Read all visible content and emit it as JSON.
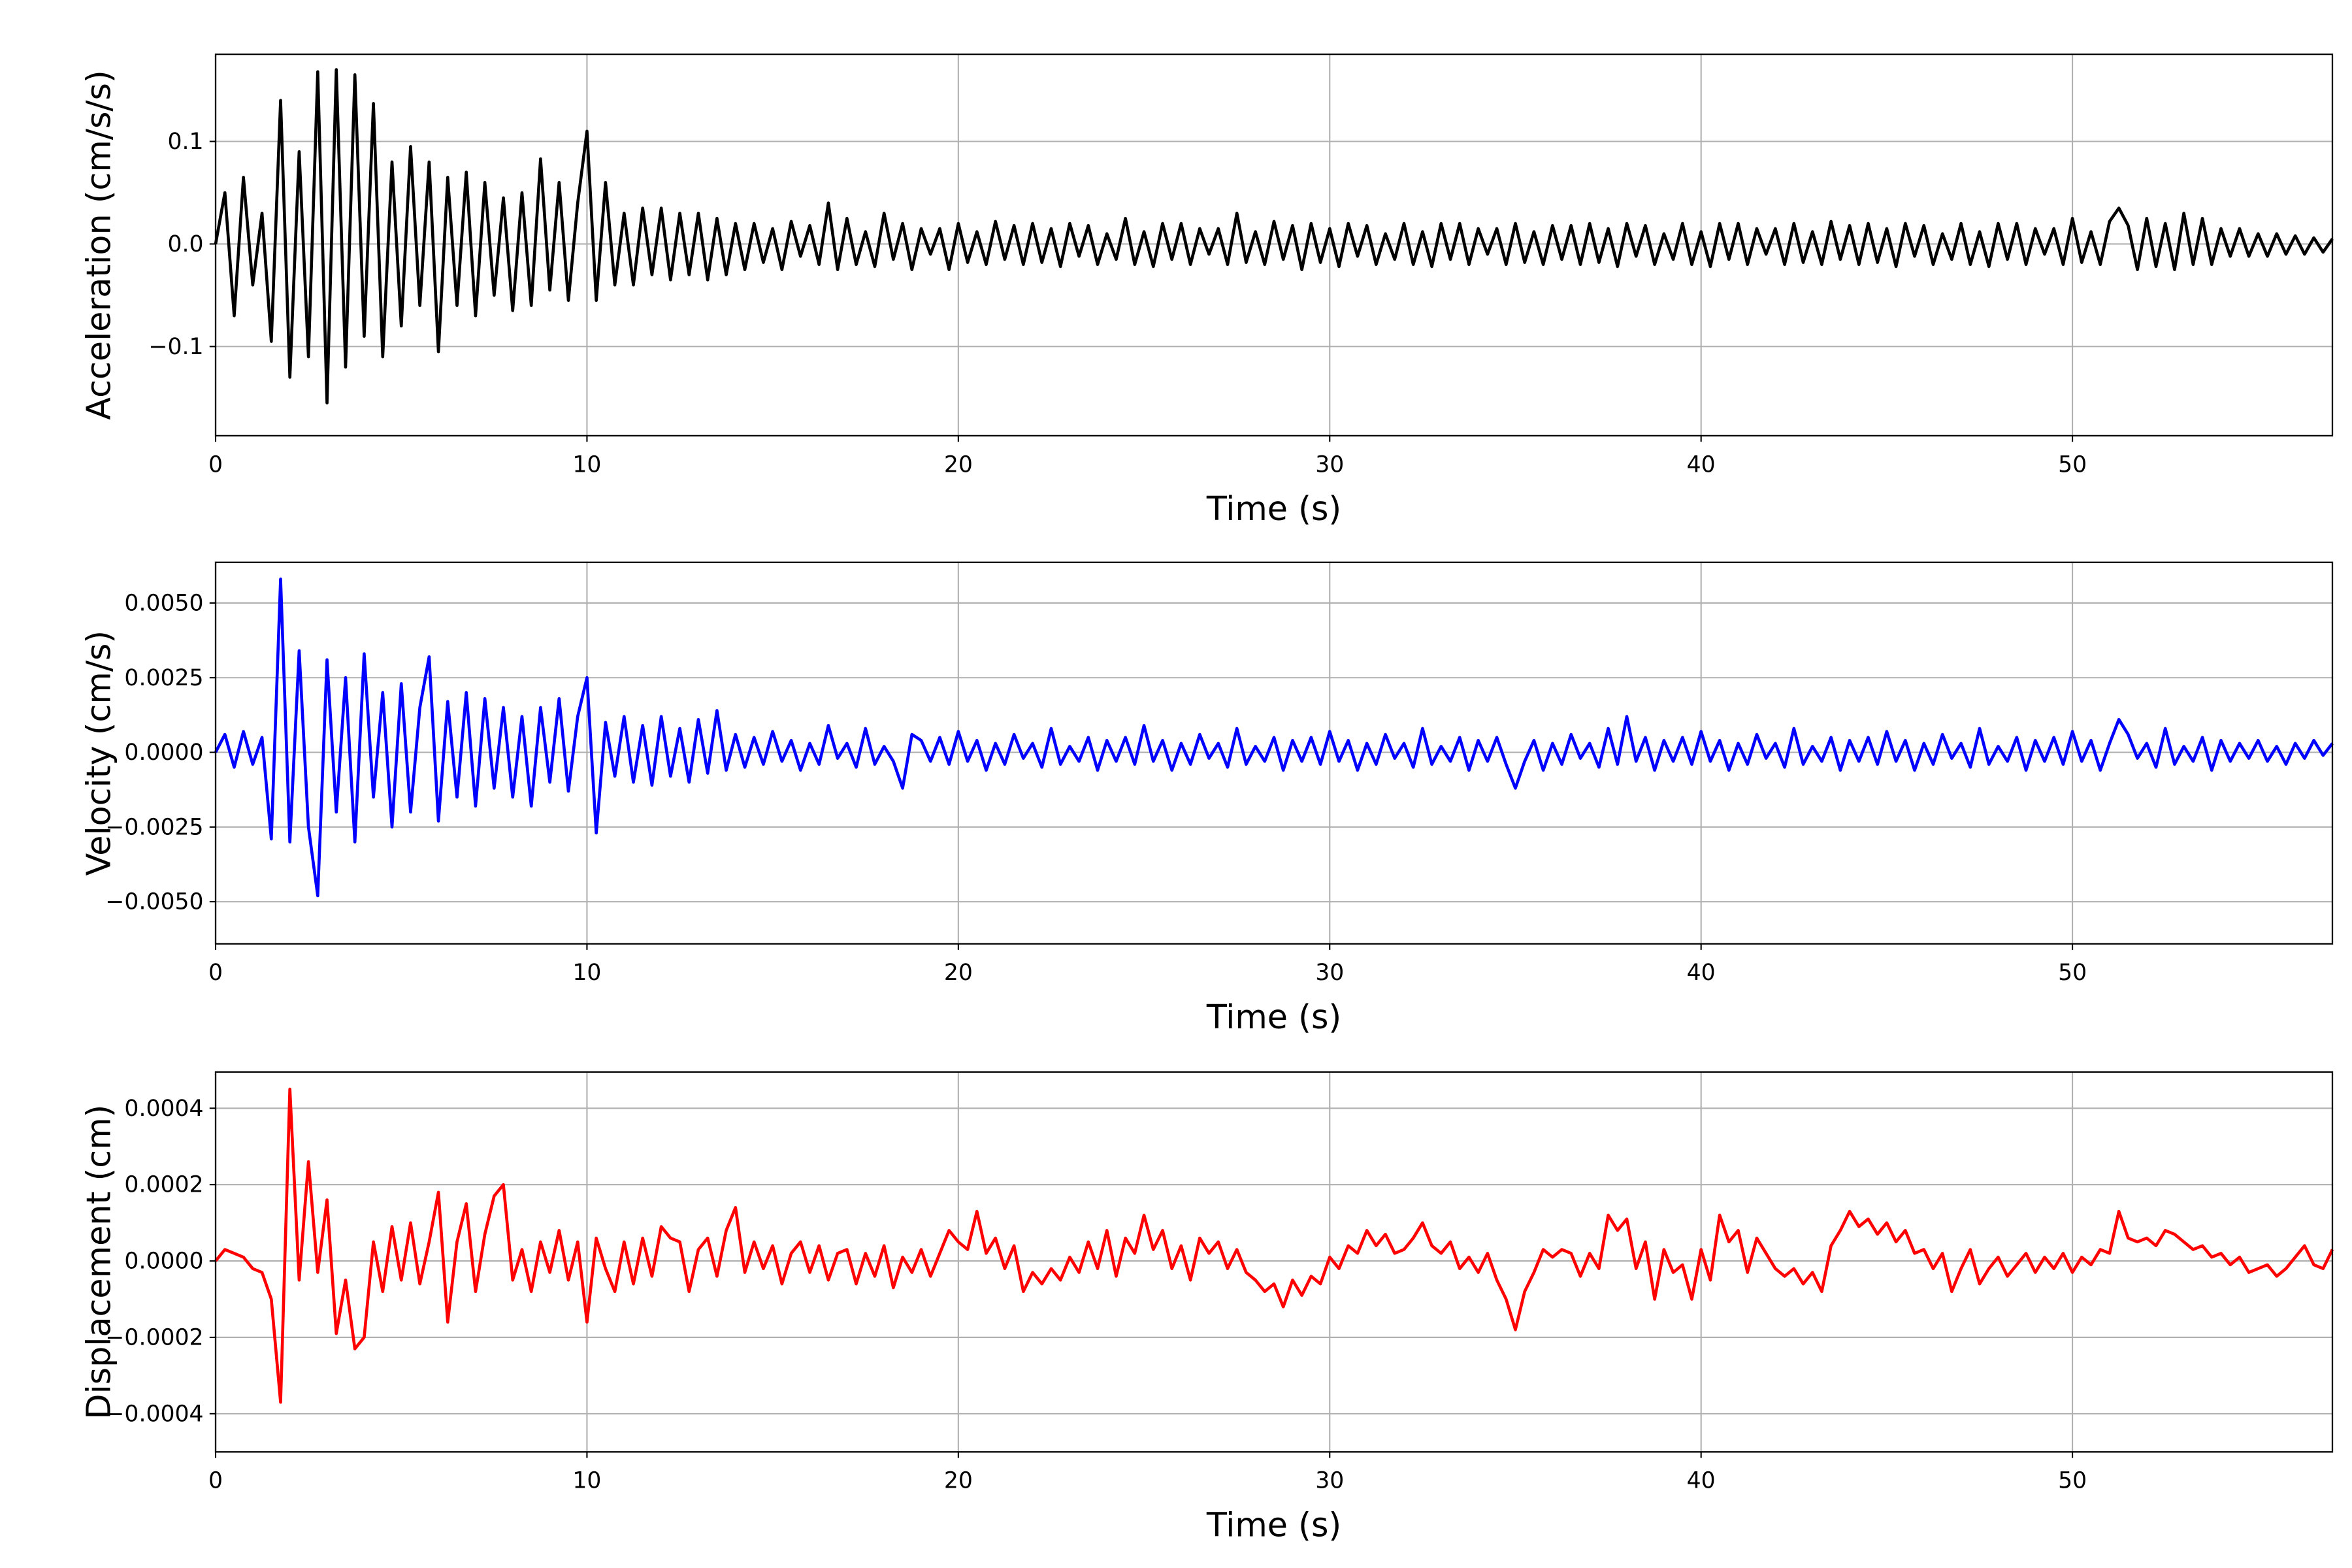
{
  "chart_data": [
    {
      "type": "line",
      "xlabel": "Time (s)",
      "ylabel": "Acceleration (cm/s/s)",
      "color": "#000000",
      "xlim": [
        0,
        57
      ],
      "ylim": [
        -0.187,
        0.185
      ],
      "grid": true,
      "xticks": [
        0,
        10,
        20,
        30,
        40,
        50
      ],
      "xticklabels": [
        "0",
        "10",
        "20",
        "30",
        "40",
        "50"
      ],
      "yticks": [
        -0.1,
        0.0,
        0.1
      ],
      "yticklabels": [
        "−0.1",
        "0.0",
        "0.1"
      ],
      "t0": 0,
      "dt": 0.25,
      "values": [
        0.0,
        0.05,
        -0.07,
        0.065,
        -0.04,
        0.03,
        -0.095,
        0.14,
        -0.13,
        0.09,
        -0.11,
        0.168,
        -0.155,
        0.17,
        -0.12,
        0.165,
        -0.09,
        0.137,
        -0.11,
        0.08,
        -0.08,
        0.095,
        -0.06,
        0.08,
        -0.105,
        0.065,
        -0.06,
        0.07,
        -0.07,
        0.06,
        -0.05,
        0.045,
        -0.065,
        0.05,
        -0.06,
        0.083,
        -0.045,
        0.06,
        -0.055,
        0.04,
        0.11,
        -0.055,
        0.06,
        -0.04,
        0.03,
        -0.04,
        0.035,
        -0.03,
        0.035,
        -0.035,
        0.03,
        -0.03,
        0.03,
        -0.035,
        0.025,
        -0.03,
        0.02,
        -0.025,
        0.02,
        -0.018,
        0.015,
        -0.025,
        0.022,
        -0.012,
        0.018,
        -0.02,
        0.04,
        -0.025,
        0.025,
        -0.02,
        0.012,
        -0.022,
        0.03,
        -0.015,
        0.02,
        -0.025,
        0.015,
        -0.01,
        0.015,
        -0.025,
        0.02,
        -0.018,
        0.012,
        -0.02,
        0.022,
        -0.015,
        0.018,
        -0.02,
        0.02,
        -0.018,
        0.015,
        -0.022,
        0.02,
        -0.012,
        0.018,
        -0.02,
        0.01,
        -0.015,
        0.025,
        -0.02,
        0.012,
        -0.022,
        0.02,
        -0.015,
        0.02,
        -0.02,
        0.015,
        -0.01,
        0.015,
        -0.02,
        0.03,
        -0.018,
        0.012,
        -0.02,
        0.022,
        -0.015,
        0.018,
        -0.025,
        0.02,
        -0.018,
        0.015,
        -0.022,
        0.02,
        -0.012,
        0.018,
        -0.02,
        0.01,
        -0.015,
        0.02,
        -0.02,
        0.012,
        -0.022,
        0.02,
        -0.015,
        0.02,
        -0.02,
        0.015,
        -0.01,
        0.015,
        -0.02,
        0.02,
        -0.018,
        0.012,
        -0.02,
        0.018,
        -0.015,
        0.018,
        -0.02,
        0.02,
        -0.018,
        0.015,
        -0.022,
        0.02,
        -0.012,
        0.018,
        -0.02,
        0.01,
        -0.015,
        0.02,
        -0.02,
        0.012,
        -0.022,
        0.02,
        -0.015,
        0.02,
        -0.02,
        0.015,
        -0.01,
        0.015,
        -0.02,
        0.02,
        -0.018,
        0.012,
        -0.02,
        0.022,
        -0.015,
        0.018,
        -0.02,
        0.02,
        -0.018,
        0.015,
        -0.022,
        0.02,
        -0.012,
        0.018,
        -0.02,
        0.01,
        -0.015,
        0.02,
        -0.02,
        0.012,
        -0.022,
        0.02,
        -0.015,
        0.02,
        -0.02,
        0.015,
        -0.01,
        0.015,
        -0.02,
        0.025,
        -0.018,
        0.012,
        -0.02,
        0.022,
        0.035,
        0.018,
        -0.025,
        0.025,
        -0.022,
        0.02,
        -0.025,
        0.03,
        -0.02,
        0.025,
        -0.02,
        0.015,
        -0.012,
        0.015,
        -0.012,
        0.01,
        -0.012,
        0.01,
        -0.01,
        0.008,
        -0.01,
        0.006,
        -0.008,
        0.005
      ]
    },
    {
      "type": "line",
      "xlabel": "Time (s)",
      "ylabel": "Velocity (cm/s)",
      "color": "#0000ff",
      "xlim": [
        0,
        57
      ],
      "ylim": [
        -0.00641,
        0.00636
      ],
      "grid": true,
      "xticks": [
        0,
        10,
        20,
        30,
        40,
        50
      ],
      "xticklabels": [
        "0",
        "10",
        "20",
        "30",
        "40",
        "50"
      ],
      "yticks": [
        -0.005,
        -0.0025,
        0.0,
        0.0025,
        0.005
      ],
      "yticklabels": [
        "−0.0050",
        "−0.0025",
        "0.0000",
        "0.0025",
        "0.0050"
      ],
      "t0": 0,
      "dt": 0.25,
      "values": [
        0,
        0.0006,
        -0.0005,
        0.0007,
        -0.0004,
        0.0005,
        -0.0029,
        0.0058,
        -0.003,
        0.0034,
        -0.0025,
        -0.0048,
        0.0031,
        -0.002,
        0.0025,
        -0.003,
        0.0033,
        -0.0015,
        0.002,
        -0.0025,
        0.0023,
        -0.002,
        0.0015,
        0.0032,
        -0.0023,
        0.0017,
        -0.0015,
        0.002,
        -0.0018,
        0.0018,
        -0.0012,
        0.0015,
        -0.0015,
        0.0012,
        -0.0018,
        0.0015,
        -0.001,
        0.0018,
        -0.0013,
        0.0012,
        0.0025,
        -0.0027,
        0.001,
        -0.0008,
        0.0012,
        -0.001,
        0.0009,
        -0.0011,
        0.0012,
        -0.0008,
        0.0008,
        -0.001,
        0.0011,
        -0.0007,
        0.0014,
        -0.0006,
        0.0006,
        -0.0005,
        0.0005,
        -0.0004,
        0.0007,
        -0.0003,
        0.0004,
        -0.0006,
        0.0003,
        -0.0004,
        0.0009,
        -0.0002,
        0.0003,
        -0.0005,
        0.0008,
        -0.0004,
        0.0002,
        -0.0003,
        -0.0012,
        0.0006,
        0.0004,
        -0.0003,
        0.0005,
        -0.0004,
        0.0007,
        -0.0003,
        0.0004,
        -0.0006,
        0.0003,
        -0.0004,
        0.0006,
        -0.0002,
        0.0003,
        -0.0005,
        0.0008,
        -0.0004,
        0.0002,
        -0.0003,
        0.0005,
        -0.0006,
        0.0004,
        -0.0003,
        0.0005,
        -0.0004,
        0.0009,
        -0.0003,
        0.0004,
        -0.0006,
        0.0003,
        -0.0004,
        0.0006,
        -0.0002,
        0.0003,
        -0.0005,
        0.0008,
        -0.0004,
        0.0002,
        -0.0003,
        0.0005,
        -0.0006,
        0.0004,
        -0.0003,
        0.0005,
        -0.0004,
        0.0007,
        -0.0003,
        0.0004,
        -0.0006,
        0.0003,
        -0.0004,
        0.0006,
        -0.0002,
        0.0003,
        -0.0005,
        0.0008,
        -0.0004,
        0.0002,
        -0.0003,
        0.0005,
        -0.0006,
        0.0004,
        -0.0003,
        0.0005,
        -0.0004,
        -0.0012,
        -0.0003,
        0.0004,
        -0.0006,
        0.0003,
        -0.0004,
        0.0006,
        -0.0002,
        0.0003,
        -0.0005,
        0.0008,
        -0.0004,
        0.0012,
        -0.0003,
        0.0005,
        -0.0006,
        0.0004,
        -0.0003,
        0.0005,
        -0.0004,
        0.0007,
        -0.0003,
        0.0004,
        -0.0006,
        0.0003,
        -0.0004,
        0.0006,
        -0.0002,
        0.0003,
        -0.0005,
        0.0008,
        -0.0004,
        0.0002,
        -0.0003,
        0.0005,
        -0.0006,
        0.0004,
        -0.0003,
        0.0005,
        -0.0004,
        0.0007,
        -0.0003,
        0.0004,
        -0.0006,
        0.0003,
        -0.0004,
        0.0006,
        -0.0002,
        0.0003,
        -0.0005,
        0.0008,
        -0.0004,
        0.0002,
        -0.0003,
        0.0005,
        -0.0006,
        0.0004,
        -0.0003,
        0.0005,
        -0.0004,
        0.0007,
        -0.0003,
        0.0004,
        -0.0006,
        0.0003,
        0.0011,
        0.0006,
        -0.0002,
        0.0003,
        -0.0005,
        0.0008,
        -0.0004,
        0.0002,
        -0.0003,
        0.0005,
        -0.0006,
        0.0004,
        -0.0003,
        0.0003,
        -0.0002,
        0.0004,
        -0.0003,
        0.0002,
        -0.0004,
        0.0003,
        -0.0002,
        0.0004,
        -0.0001,
        0.0003
      ]
    },
    {
      "type": "line",
      "xlabel": "Time (s)",
      "ylabel": "Displacement (cm)",
      "color": "#ff0000",
      "xlim": [
        0,
        57
      ],
      "ylim": [
        -0.0005,
        0.000495
      ],
      "grid": true,
      "xticks": [
        0,
        10,
        20,
        30,
        40,
        50
      ],
      "xticklabels": [
        "0",
        "10",
        "20",
        "30",
        "40",
        "50"
      ],
      "yticks": [
        -0.0004,
        -0.0002,
        0.0,
        0.0002,
        0.0004
      ],
      "yticklabels": [
        "−0.0004",
        "−0.0002",
        "0.0000",
        "0.0002",
        "0.0004"
      ],
      "t0": 0,
      "dt": 0.25,
      "values": [
        0,
        3e-05,
        2e-05,
        1e-05,
        -2e-05,
        -3e-05,
        -0.0001,
        -0.00037,
        0.00045,
        -5e-05,
        0.00026,
        -3e-05,
        0.00016,
        -0.00019,
        -5e-05,
        -0.00023,
        -0.0002,
        5e-05,
        -8e-05,
        9e-05,
        -5e-05,
        0.0001,
        -6e-05,
        5e-05,
        0.00018,
        -0.00016,
        5e-05,
        0.00015,
        -8e-05,
        7e-05,
        0.00017,
        0.0002,
        -5e-05,
        3e-05,
        -8e-05,
        5e-05,
        -3e-05,
        8e-05,
        -5e-05,
        5e-05,
        -0.00016,
        6e-05,
        -2e-05,
        -8e-05,
        5e-05,
        -6e-05,
        6e-05,
        -4e-05,
        9e-05,
        6e-05,
        5e-05,
        -8e-05,
        3e-05,
        6e-05,
        -4e-05,
        8e-05,
        0.00014,
        -3e-05,
        5e-05,
        -2e-05,
        4e-05,
        -6e-05,
        2e-05,
        5e-05,
        -3e-05,
        4e-05,
        -5e-05,
        2e-05,
        3e-05,
        -6e-05,
        2e-05,
        -4e-05,
        4e-05,
        -7e-05,
        1e-05,
        -3e-05,
        3e-05,
        -4e-05,
        2e-05,
        8e-05,
        5e-05,
        3e-05,
        0.00013,
        2e-05,
        6e-05,
        -2e-05,
        4e-05,
        -8e-05,
        -3e-05,
        -6e-05,
        -2e-05,
        -5e-05,
        1e-05,
        -3e-05,
        5e-05,
        -2e-05,
        8e-05,
        -4e-05,
        6e-05,
        2e-05,
        0.00012,
        3e-05,
        8e-05,
        -2e-05,
        4e-05,
        -5e-05,
        6e-05,
        2e-05,
        5e-05,
        -2e-05,
        3e-05,
        -3e-05,
        -5e-05,
        -8e-05,
        -6e-05,
        -0.00012,
        -5e-05,
        -9e-05,
        -4e-05,
        -6e-05,
        1e-05,
        -2e-05,
        4e-05,
        2e-05,
        8e-05,
        4e-05,
        7e-05,
        2e-05,
        3e-05,
        6e-05,
        0.0001,
        4e-05,
        2e-05,
        5e-05,
        -2e-05,
        1e-05,
        -3e-05,
        2e-05,
        -5e-05,
        -0.0001,
        -0.00018,
        -8e-05,
        -3e-05,
        3e-05,
        1e-05,
        3e-05,
        2e-05,
        -4e-05,
        2e-05,
        -2e-05,
        0.00012,
        8e-05,
        0.00011,
        -2e-05,
        5e-05,
        -0.0001,
        3e-05,
        -3e-05,
        -1e-05,
        -0.0001,
        3e-05,
        -5e-05,
        0.00012,
        5e-05,
        8e-05,
        -3e-05,
        6e-05,
        2e-05,
        -2e-05,
        -4e-05,
        -2e-05,
        -6e-05,
        -3e-05,
        -8e-05,
        4e-05,
        8e-05,
        0.00013,
        9e-05,
        0.00011,
        7e-05,
        0.0001,
        5e-05,
        8e-05,
        2e-05,
        3e-05,
        -2e-05,
        2e-05,
        -8e-05,
        -2e-05,
        3e-05,
        -6e-05,
        -2e-05,
        1e-05,
        -4e-05,
        -1e-05,
        2e-05,
        -3e-05,
        1e-05,
        -2e-05,
        2e-05,
        -3e-05,
        1e-05,
        -1e-05,
        3e-05,
        2e-05,
        0.00013,
        6e-05,
        5e-05,
        6e-05,
        4e-05,
        8e-05,
        7e-05,
        5e-05,
        3e-05,
        4e-05,
        1e-05,
        2e-05,
        -1e-05,
        1e-05,
        -3e-05,
        -2e-05,
        -1e-05,
        -4e-05,
        -2e-05,
        1e-05,
        4e-05,
        -1e-05,
        -2e-05,
        3e-05
      ]
    }
  ]
}
